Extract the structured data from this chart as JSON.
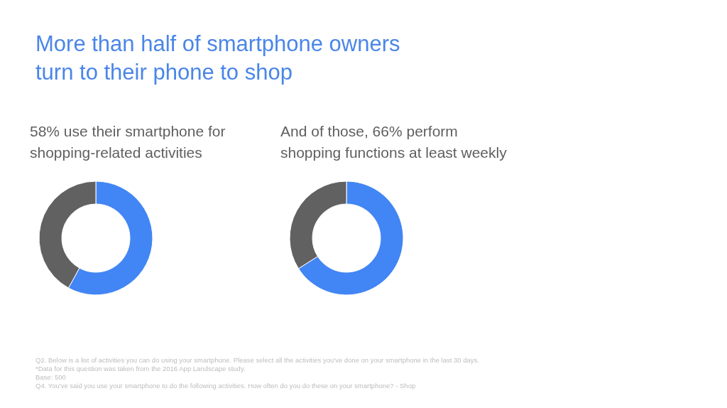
{
  "chart_data": [
    {
      "type": "donut",
      "title": "More than half of smartphone owners turn to their phone to shop",
      "subtitle": "58% use their smartphone for shopping-related activities",
      "categories": [
        null,
        null
      ],
      "values": [
        58,
        42
      ],
      "colors": [
        "#4285f4",
        "#616161"
      ],
      "legend": false,
      "annotations": [
        "Q2. Below is a list of activities you can do using your smartphone. Please select all the activities you've done on your smartphone in the last 30 days.",
        "*Data for this question was taken from the 2016 App Landscape study.",
        "Base: 500",
        "Q4. You've said you use your smartphone to do the following activities. How often do you do these on your smartphone? - Shop"
      ]
    },
    {
      "type": "donut",
      "subtitle": "And of those, 66% perform shopping functions at least weekly",
      "categories": [
        null,
        null
      ],
      "values": [
        66,
        34
      ],
      "colors": [
        "#4285f4",
        "#616161"
      ],
      "legend": false
    }
  ]
}
